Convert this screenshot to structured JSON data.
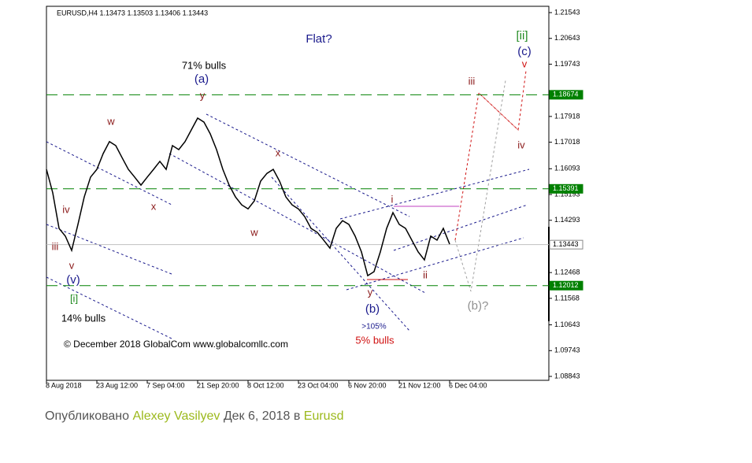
{
  "chart_data": {
    "type": "line",
    "header": "EURUSD,H4  1.13473 1.13503 1.13406 1.13443",
    "watermark": "© December 2018 GlobalCom www.globalcomllc.com",
    "categories": [
      "8 Aug 2018",
      null,
      null,
      null,
      null,
      null,
      null,
      null,
      "23 Aug 12:00",
      null,
      null,
      null,
      null,
      null,
      null,
      null,
      "7 Sep 04:00",
      null,
      null,
      null,
      null,
      null,
      null,
      null,
      "21 Sep 20:00",
      null,
      null,
      null,
      null,
      null,
      null,
      null,
      "8 Oct 12:00",
      null,
      null,
      null,
      null,
      null,
      null,
      null,
      "23 Oct 04:00",
      null,
      null,
      null,
      null,
      null,
      null,
      null,
      "6 Nov 20:00",
      null,
      null,
      null,
      null,
      null,
      null,
      null,
      "21 Nov 12:00",
      null,
      null,
      null,
      null,
      null,
      null,
      null,
      "6 Dec 04:00"
    ],
    "series": [
      {
        "name": "EURUSD",
        "color": "#000000",
        "values": [
          1.1607,
          1.1525,
          1.1401,
          1.1374,
          1.1324,
          1.1415,
          1.1511,
          1.158,
          1.1607,
          1.1662,
          1.1704,
          1.169,
          1.1648,
          1.1607,
          1.158,
          1.1552,
          1.158,
          1.1607,
          1.1635,
          1.1607,
          1.169,
          1.1676,
          1.1704,
          1.1745,
          1.1786,
          1.1772,
          1.1731,
          1.1676,
          1.1607,
          1.1552,
          1.1511,
          1.1483,
          1.1469,
          1.1497,
          1.1566,
          1.1593,
          1.1607,
          1.1566,
          1.1511,
          1.1483,
          1.1469,
          1.1442,
          1.1401,
          1.1387,
          1.136,
          1.1332,
          1.1401,
          1.1428,
          1.1415,
          1.1374,
          1.1319,
          1.1236,
          1.125,
          1.1319,
          1.1401,
          1.1456,
          1.1415,
          1.1401,
          1.136,
          1.1319,
          1.1291,
          1.1374,
          1.136,
          1.1401,
          1.1346
        ]
      }
    ],
    "ylim": [
      1.08706,
      1.21763
    ],
    "yticks": [
      1.21543,
      1.20643,
      1.19743,
      1.17918,
      1.17018,
      1.16093,
      1.15193,
      1.14293,
      1.12468,
      1.11568,
      1.10643,
      1.09743,
      1.08843
    ],
    "levels": [
      {
        "value": 1.18674,
        "color": "#008000"
      },
      {
        "value": 1.15391,
        "color": "#008000"
      },
      {
        "value": 1.13443,
        "color": "#c0c0c0"
      },
      {
        "value": 1.12012,
        "color": "#008000"
      }
    ],
    "annotations": [
      {
        "text": "Flat?",
        "color": "#1a1a8c"
      },
      {
        "text": "71% bulls",
        "color": "#000000"
      },
      {
        "text": "(a)",
        "color": "#1a1a8c"
      },
      {
        "text": "y",
        "color": "#8b1a1a"
      },
      {
        "text": "w",
        "color": "#8b1a1a"
      },
      {
        "text": "x",
        "color": "#8b1a1a"
      },
      {
        "text": "x",
        "color": "#8b1a1a"
      },
      {
        "text": "w",
        "color": "#8b1a1a"
      },
      {
        "text": "iv",
        "color": "#8b1a1a"
      },
      {
        "text": "iii",
        "color": "#8b1a1a"
      },
      {
        "text": "v",
        "color": "#8b1a1a"
      },
      {
        "text": "(v)",
        "color": "#1a1a8c"
      },
      {
        "text": "[i]",
        "color": "#228b22"
      },
      {
        "text": "14% bulls",
        "color": "#000000"
      },
      {
        "text": "i",
        "color": "#8b1a1a"
      },
      {
        "text": "ii",
        "color": "#8b1a1a"
      },
      {
        "text": "y",
        "color": "#8b1a1a"
      },
      {
        "text": "(b)",
        "color": "#1a1a8c"
      },
      {
        "text": ">105%",
        "color": "#1a1a8c"
      },
      {
        "text": "5% bulls",
        "color": "#d01010"
      },
      {
        "text": "(b)?",
        "color": "#909090"
      },
      {
        "text": "iii",
        "color": "#8b1a1a"
      },
      {
        "text": "iv",
        "color": "#8b1a1a"
      },
      {
        "text": "v",
        "color": "#d01010"
      },
      {
        "text": "(c)",
        "color": "#1a1a8c"
      },
      {
        "text": "[ii]",
        "color": "#228b22"
      }
    ]
  },
  "footer": {
    "prefix": "Опубликовано",
    "author": "Alexey Vasilyev",
    "date": "Дек 6, 2018 в",
    "category": "Eurusd"
  }
}
